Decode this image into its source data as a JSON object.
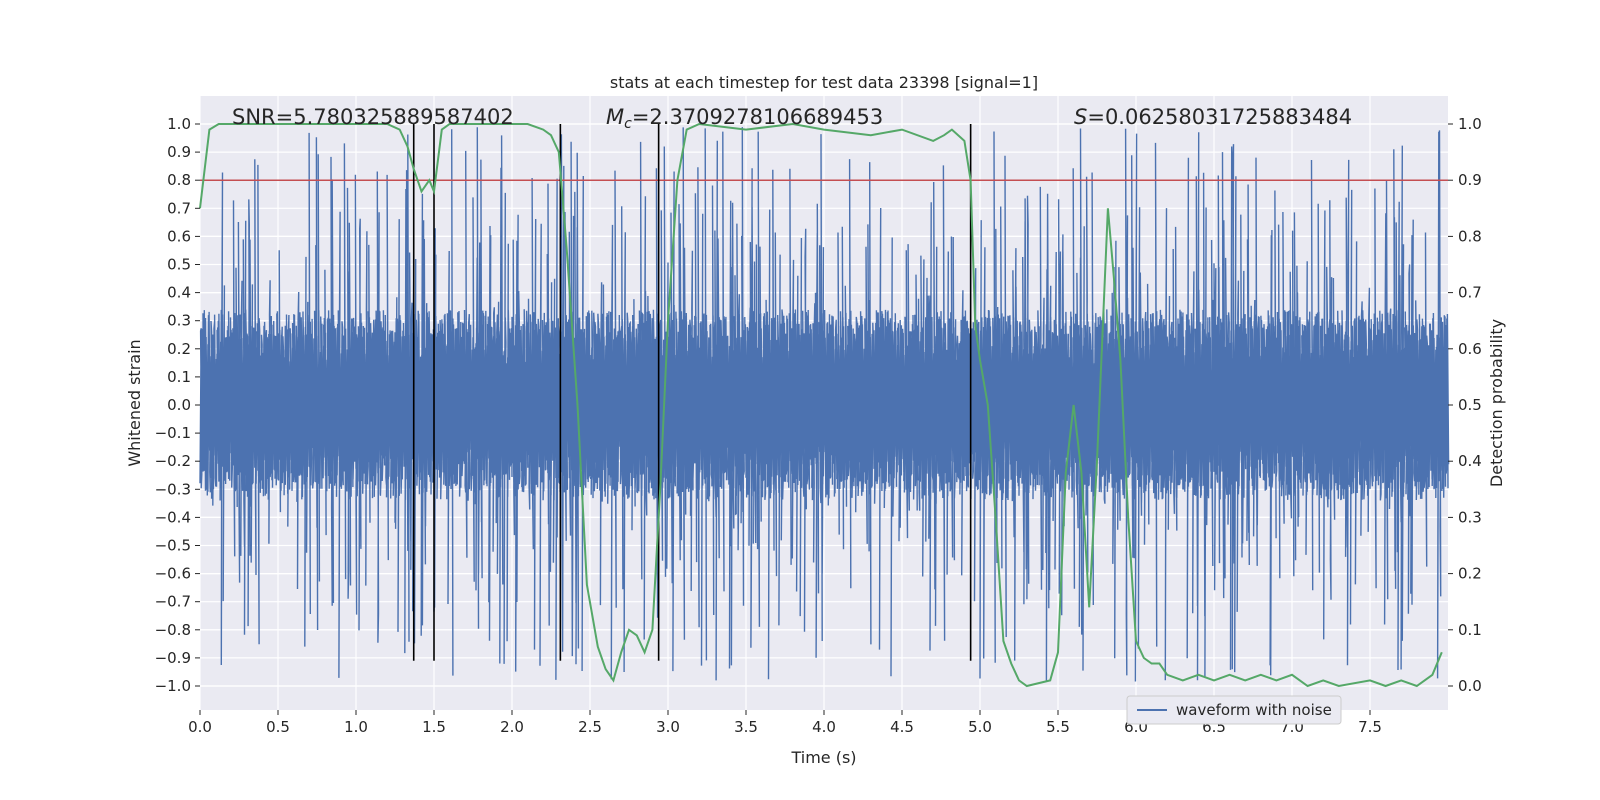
{
  "chart_data": {
    "type": "line",
    "title": "stats at each timestep for test data 23398 [signal=1]",
    "xlabel": "Time (s)",
    "ylabel": "Whitened strain",
    "ylabel_right": "Detection probability",
    "xlim": [
      0,
      8
    ],
    "ylim": [
      -1.0,
      1.0
    ],
    "ylim_right": [
      0.0,
      1.0
    ],
    "x_ticks": [
      0.0,
      0.5,
      1.0,
      1.5,
      2.0,
      2.5,
      3.0,
      3.5,
      4.0,
      4.5,
      5.0,
      5.5,
      6.0,
      6.5,
      7.0,
      7.5
    ],
    "x_tick_labels": [
      "0.0",
      "0.5",
      "1.0",
      "1.5",
      "2.0",
      "2.5",
      "3.0",
      "3.5",
      "4.0",
      "4.5",
      "5.0",
      "5.5",
      "6.0",
      "6.5",
      "7.0",
      "7.5"
    ],
    "y_ticks": [
      -1.0,
      -0.9,
      -0.8,
      -0.7,
      -0.6,
      -0.5,
      -0.4,
      -0.3,
      -0.2,
      -0.1,
      0.0,
      0.1,
      0.2,
      0.3,
      0.4,
      0.5,
      0.6,
      0.7,
      0.8,
      0.9,
      1.0
    ],
    "y_tick_labels": [
      "−1.0",
      "−0.9",
      "−0.8",
      "−0.7",
      "−0.6",
      "−0.5",
      "−0.4",
      "−0.3",
      "−0.2",
      "−0.1",
      "0.0",
      "0.1",
      "0.2",
      "0.3",
      "0.4",
      "0.5",
      "0.6",
      "0.7",
      "0.8",
      "0.9",
      "1.0"
    ],
    "y_right_ticks": [
      0.0,
      0.1,
      0.2,
      0.3,
      0.4,
      0.5,
      0.6,
      0.7,
      0.8,
      0.9,
      1.0
    ],
    "y_right_tick_labels": [
      "0.0",
      "0.1",
      "0.2",
      "0.3",
      "0.4",
      "0.5",
      "0.6",
      "0.7",
      "0.8",
      "0.9",
      "1.0"
    ],
    "grid": true,
    "legend": {
      "placement": "lower-right",
      "entries": [
        "waveform with noise"
      ]
    },
    "annotations": {
      "snr": "SNR=5.780325889587402",
      "mc_symbol": "M",
      "mc_sub": "c",
      "mc_value": "=2.3709278106689453",
      "s_symbol": "S",
      "s_value": "=0.06258031725883484"
    },
    "threshold_right": 0.9,
    "vertical_lines_x": [
      1.37,
      1.5,
      2.31,
      2.94,
      4.94
    ],
    "series": [
      {
        "name": "waveform with noise",
        "axis": "left",
        "color": "#4c72b0",
        "kind": "noise",
        "sample_rate": 256,
        "core_amplitude": 0.34,
        "spike_amplitude": 0.65
      },
      {
        "axis": "right",
        "color": "#55a868",
        "x": [
          0.0,
          0.06,
          0.12,
          0.25,
          0.5,
          0.75,
          1.0,
          1.1,
          1.2,
          1.28,
          1.33,
          1.37,
          1.42,
          1.47,
          1.5,
          1.55,
          1.6,
          1.8,
          2.0,
          2.1,
          2.2,
          2.25,
          2.3,
          2.35,
          2.42,
          2.48,
          2.55,
          2.6,
          2.65,
          2.7,
          2.75,
          2.8,
          2.85,
          2.9,
          2.95,
          3.0,
          3.06,
          3.12,
          3.2,
          3.5,
          3.8,
          4.0,
          4.3,
          4.5,
          4.7,
          4.77,
          4.82,
          4.9,
          4.94,
          4.97,
          5.0,
          5.05,
          5.1,
          5.15,
          5.2,
          5.25,
          5.3,
          5.45,
          5.5,
          5.55,
          5.6,
          5.65,
          5.7,
          5.75,
          5.82,
          5.86,
          5.9,
          5.95,
          6.0,
          6.05,
          6.1,
          6.15,
          6.2,
          6.3,
          6.4,
          6.5,
          6.6,
          6.7,
          6.8,
          6.9,
          7.0,
          7.1,
          7.2,
          7.3,
          7.5,
          7.6,
          7.7,
          7.8,
          7.85,
          7.9,
          7.96
        ],
        "y": [
          0.85,
          0.99,
          1.0,
          1.0,
          1.0,
          1.0,
          1.0,
          1.0,
          1.0,
          0.99,
          0.96,
          0.92,
          0.88,
          0.9,
          0.88,
          0.99,
          1.0,
          1.0,
          1.0,
          1.0,
          0.99,
          0.98,
          0.95,
          0.78,
          0.5,
          0.18,
          0.07,
          0.03,
          0.01,
          0.06,
          0.1,
          0.09,
          0.06,
          0.1,
          0.35,
          0.65,
          0.9,
          0.99,
          1.0,
          0.99,
          1.0,
          0.99,
          0.98,
          0.99,
          0.97,
          0.98,
          0.99,
          0.97,
          0.9,
          0.64,
          0.58,
          0.5,
          0.3,
          0.08,
          0.04,
          0.01,
          0.0,
          0.01,
          0.06,
          0.38,
          0.5,
          0.38,
          0.14,
          0.4,
          0.85,
          0.72,
          0.58,
          0.3,
          0.08,
          0.05,
          0.04,
          0.04,
          0.02,
          0.01,
          0.02,
          0.01,
          0.02,
          0.01,
          0.02,
          0.01,
          0.02,
          0.0,
          0.01,
          0.0,
          0.01,
          0.0,
          0.01,
          0.0,
          0.01,
          0.02,
          0.06
        ]
      }
    ]
  }
}
